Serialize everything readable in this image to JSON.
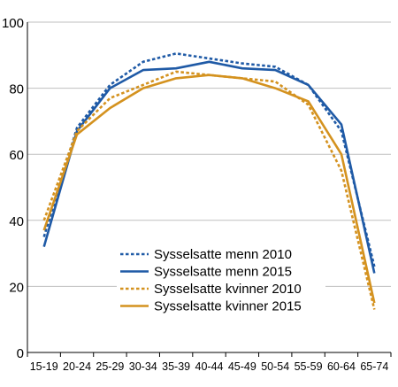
{
  "chart_data": {
    "type": "line",
    "title": "",
    "xlabel": "",
    "ylabel": "",
    "categories": [
      "15-19",
      "20-24",
      "25-29",
      "30-34",
      "35-39",
      "40-44",
      "45-49",
      "50-54",
      "55-59",
      "60-64",
      "65-74"
    ],
    "ylim": [
      0,
      100
    ],
    "yticks": [
      0,
      20,
      40,
      60,
      80,
      100
    ],
    "grid": "horizontal",
    "legend_position": "bottom-center",
    "series": [
      {
        "name": "Sysselsatte menn 2010",
        "color": "#1f5aa6",
        "style": "dashed",
        "values": [
          35,
          68,
          81,
          88,
          90.5,
          89,
          87.5,
          86.5,
          81,
          67,
          26
        ]
      },
      {
        "name": "Sysselsatte menn 2015",
        "color": "#1f5aa6",
        "style": "solid",
        "values": [
          32,
          67,
          80,
          85.5,
          86,
          88,
          86,
          85.5,
          81,
          69,
          24
        ]
      },
      {
        "name": "Sysselsatte kvinner 2010",
        "color": "#d4921f",
        "style": "dashed",
        "values": [
          40,
          67,
          77,
          81,
          85,
          84,
          83,
          82,
          75,
          55,
          13
        ]
      },
      {
        "name": "Sysselsatte kvinner 2015",
        "color": "#d4921f",
        "style": "solid",
        "values": [
          37,
          66,
          74,
          80,
          83,
          84,
          83,
          80,
          76,
          60,
          15
        ]
      }
    ]
  }
}
